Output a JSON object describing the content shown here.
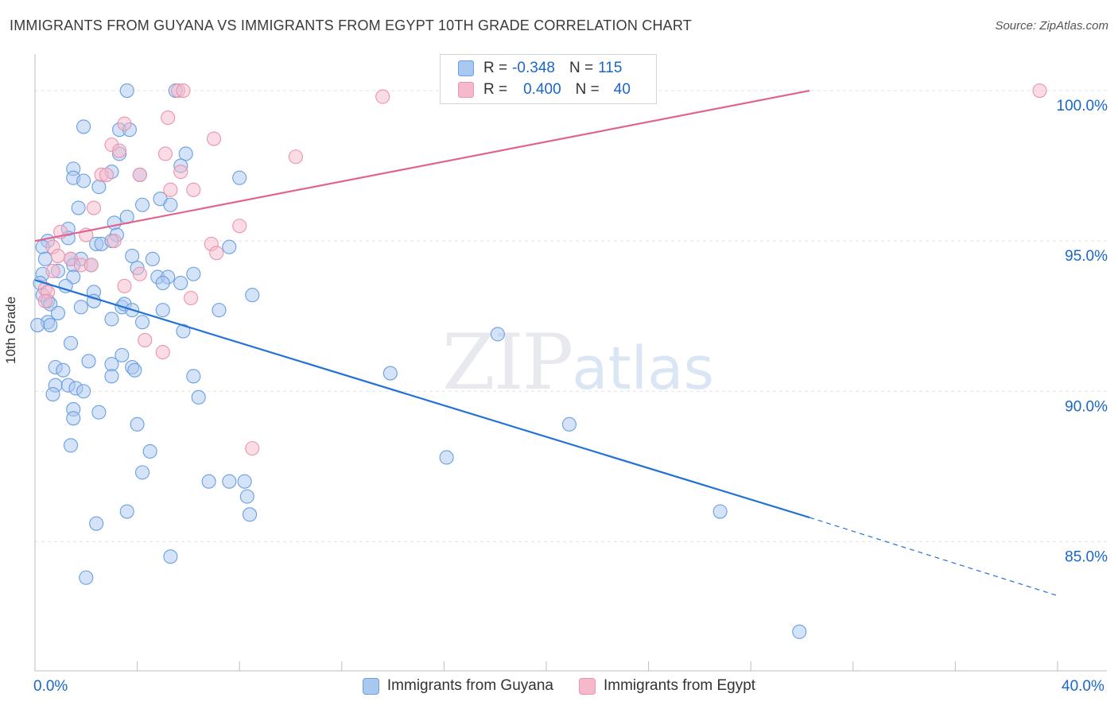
{
  "title": "IMMIGRANTS FROM GUYANA VS IMMIGRANTS FROM EGYPT 10TH GRADE CORRELATION CHART",
  "source": "Source: ZipAtlas.com",
  "watermark": {
    "zip": "ZIP",
    "atlas": "atlas"
  },
  "legend_top": [
    {
      "r_label": "R =",
      "r_value": "-0.348",
      "n_label": "N =",
      "n_value": "115"
    },
    {
      "r_label": "R =",
      "r_value": "0.400",
      "n_label": "N =",
      "n_value": "40"
    }
  ],
  "colors": {
    "guyana_fill": "#a9c8f0",
    "guyana_stroke": "#6a9fe0",
    "guyana_line": "#2272d4",
    "egypt_fill": "#f6b9cb",
    "egypt_stroke": "#ec93ae",
    "egypt_line": "#e0648e",
    "tick_label": "#1a66c9",
    "grid": "#e2e2e2"
  },
  "chart_data": {
    "type": "scatter",
    "title": "IMMIGRANTS FROM GUYANA VS IMMIGRANTS FROM EGYPT 10TH GRADE CORRELATION CHART",
    "xlabel": "",
    "ylabel": "10th Grade",
    "xlim": [
      0,
      40
    ],
    "ylim": [
      80.7,
      100.9
    ],
    "x_tick_labels": [
      "0.0%",
      "40.0%"
    ],
    "y_ticks": [
      85,
      90,
      95,
      100
    ],
    "y_tick_labels": [
      "85.0%",
      "90.0%",
      "95.0%",
      "100.0%"
    ],
    "grid": "horizontal dashed",
    "legend_placement": "bottom-center",
    "series": [
      {
        "name": "Immigrants from Guyana",
        "R": -0.348,
        "N": 115,
        "trend": {
          "x": [
            0,
            30.3
          ],
          "y": [
            93.7,
            85.8
          ],
          "dashed_extension_to": [
            40,
            83.2
          ]
        },
        "points": [
          [
            3.6,
            100.0
          ],
          [
            5.5,
            100.0
          ],
          [
            1.9,
            98.8
          ],
          [
            3.3,
            98.7
          ],
          [
            3.7,
            98.7
          ],
          [
            3.3,
            97.9
          ],
          [
            5.9,
            97.9
          ],
          [
            1.5,
            97.4
          ],
          [
            1.5,
            97.1
          ],
          [
            3.0,
            97.3
          ],
          [
            5.7,
            97.5
          ],
          [
            4.1,
            97.2
          ],
          [
            8.0,
            97.1
          ],
          [
            1.9,
            97.0
          ],
          [
            2.5,
            96.8
          ],
          [
            4.9,
            96.4
          ],
          [
            4.2,
            96.2
          ],
          [
            5.3,
            96.2
          ],
          [
            1.7,
            96.1
          ],
          [
            3.6,
            95.8
          ],
          [
            3.1,
            95.6
          ],
          [
            1.3,
            95.4
          ],
          [
            1.3,
            95.1
          ],
          [
            3.2,
            95.2
          ],
          [
            0.5,
            95.0
          ],
          [
            2.4,
            94.9
          ],
          [
            2.6,
            94.9
          ],
          [
            3.0,
            95.0
          ],
          [
            7.6,
            94.8
          ],
          [
            0.3,
            94.8
          ],
          [
            0.4,
            94.4
          ],
          [
            1.4,
            94.4
          ],
          [
            1.8,
            94.4
          ],
          [
            3.8,
            94.5
          ],
          [
            4.6,
            94.4
          ],
          [
            2.2,
            94.2
          ],
          [
            4.0,
            94.1
          ],
          [
            1.5,
            94.2
          ],
          [
            0.3,
            93.9
          ],
          [
            0.9,
            94.0
          ],
          [
            1.5,
            93.8
          ],
          [
            4.8,
            93.8
          ],
          [
            5.2,
            93.8
          ],
          [
            5.0,
            93.6
          ],
          [
            6.2,
            93.9
          ],
          [
            5.7,
            93.6
          ],
          [
            0.2,
            93.6
          ],
          [
            1.2,
            93.5
          ],
          [
            2.3,
            93.3
          ],
          [
            0.3,
            93.2
          ],
          [
            0.5,
            93.0
          ],
          [
            2.3,
            93.0
          ],
          [
            8.5,
            93.2
          ],
          [
            0.6,
            92.9
          ],
          [
            3.4,
            92.8
          ],
          [
            3.5,
            92.9
          ],
          [
            1.8,
            92.8
          ],
          [
            3.8,
            92.7
          ],
          [
            5.0,
            92.7
          ],
          [
            7.2,
            92.7
          ],
          [
            3.0,
            92.4
          ],
          [
            0.9,
            92.6
          ],
          [
            4.2,
            92.3
          ],
          [
            0.5,
            92.3
          ],
          [
            0.6,
            92.2
          ],
          [
            0.1,
            92.2
          ],
          [
            5.8,
            92.0
          ],
          [
            18.1,
            91.9
          ],
          [
            1.4,
            91.6
          ],
          [
            3.4,
            91.2
          ],
          [
            2.1,
            91.0
          ],
          [
            3.0,
            90.9
          ],
          [
            0.8,
            90.8
          ],
          [
            1.1,
            90.7
          ],
          [
            3.8,
            90.8
          ],
          [
            3.9,
            90.7
          ],
          [
            13.9,
            90.6
          ],
          [
            3.0,
            90.5
          ],
          [
            6.2,
            90.5
          ],
          [
            0.8,
            90.2
          ],
          [
            1.3,
            90.2
          ],
          [
            1.6,
            90.1
          ],
          [
            0.7,
            89.9
          ],
          [
            1.9,
            90.0
          ],
          [
            6.4,
            89.8
          ],
          [
            1.5,
            89.4
          ],
          [
            2.5,
            89.3
          ],
          [
            1.5,
            89.1
          ],
          [
            20.9,
            88.9
          ],
          [
            4.0,
            88.9
          ],
          [
            1.4,
            88.2
          ],
          [
            4.5,
            88.0
          ],
          [
            16.1,
            87.8
          ],
          [
            4.2,
            87.3
          ],
          [
            7.6,
            87.0
          ],
          [
            6.8,
            87.0
          ],
          [
            8.2,
            87.0
          ],
          [
            8.3,
            86.5
          ],
          [
            8.4,
            85.9
          ],
          [
            3.6,
            86.0
          ],
          [
            26.8,
            86.0
          ],
          [
            2.4,
            85.6
          ],
          [
            5.3,
            84.5
          ],
          [
            2.0,
            83.8
          ],
          [
            29.9,
            82.0
          ]
        ]
      },
      {
        "name": "Immigrants from Egypt",
        "R": 0.4,
        "N": 40,
        "trend": {
          "x": [
            0,
            30.3
          ],
          "y": [
            95.0,
            100.0
          ]
        },
        "points": [
          [
            5.6,
            100.0
          ],
          [
            5.8,
            100.0
          ],
          [
            18.8,
            100.0
          ],
          [
            13.6,
            99.8
          ],
          [
            39.3,
            100.0
          ],
          [
            5.2,
            99.1
          ],
          [
            3.5,
            98.9
          ],
          [
            7.0,
            98.4
          ],
          [
            3.0,
            98.2
          ],
          [
            3.3,
            98.0
          ],
          [
            5.1,
            97.9
          ],
          [
            10.2,
            97.8
          ],
          [
            5.7,
            97.3
          ],
          [
            2.6,
            97.2
          ],
          [
            2.8,
            97.2
          ],
          [
            4.1,
            97.2
          ],
          [
            5.3,
            96.7
          ],
          [
            6.2,
            96.7
          ],
          [
            2.3,
            96.1
          ],
          [
            8.0,
            95.5
          ],
          [
            1.0,
            95.3
          ],
          [
            2.0,
            95.2
          ],
          [
            3.1,
            95.0
          ],
          [
            6.9,
            94.9
          ],
          [
            0.7,
            94.8
          ],
          [
            7.1,
            94.6
          ],
          [
            0.9,
            94.5
          ],
          [
            1.4,
            94.4
          ],
          [
            1.8,
            94.2
          ],
          [
            2.2,
            94.2
          ],
          [
            4.1,
            93.9
          ],
          [
            0.7,
            94.0
          ],
          [
            3.5,
            93.5
          ],
          [
            0.4,
            93.4
          ],
          [
            0.5,
            93.3
          ],
          [
            0.4,
            93.0
          ],
          [
            6.1,
            93.1
          ],
          [
            4.3,
            91.7
          ],
          [
            5.0,
            91.3
          ],
          [
            8.5,
            88.1
          ]
        ]
      }
    ]
  }
}
